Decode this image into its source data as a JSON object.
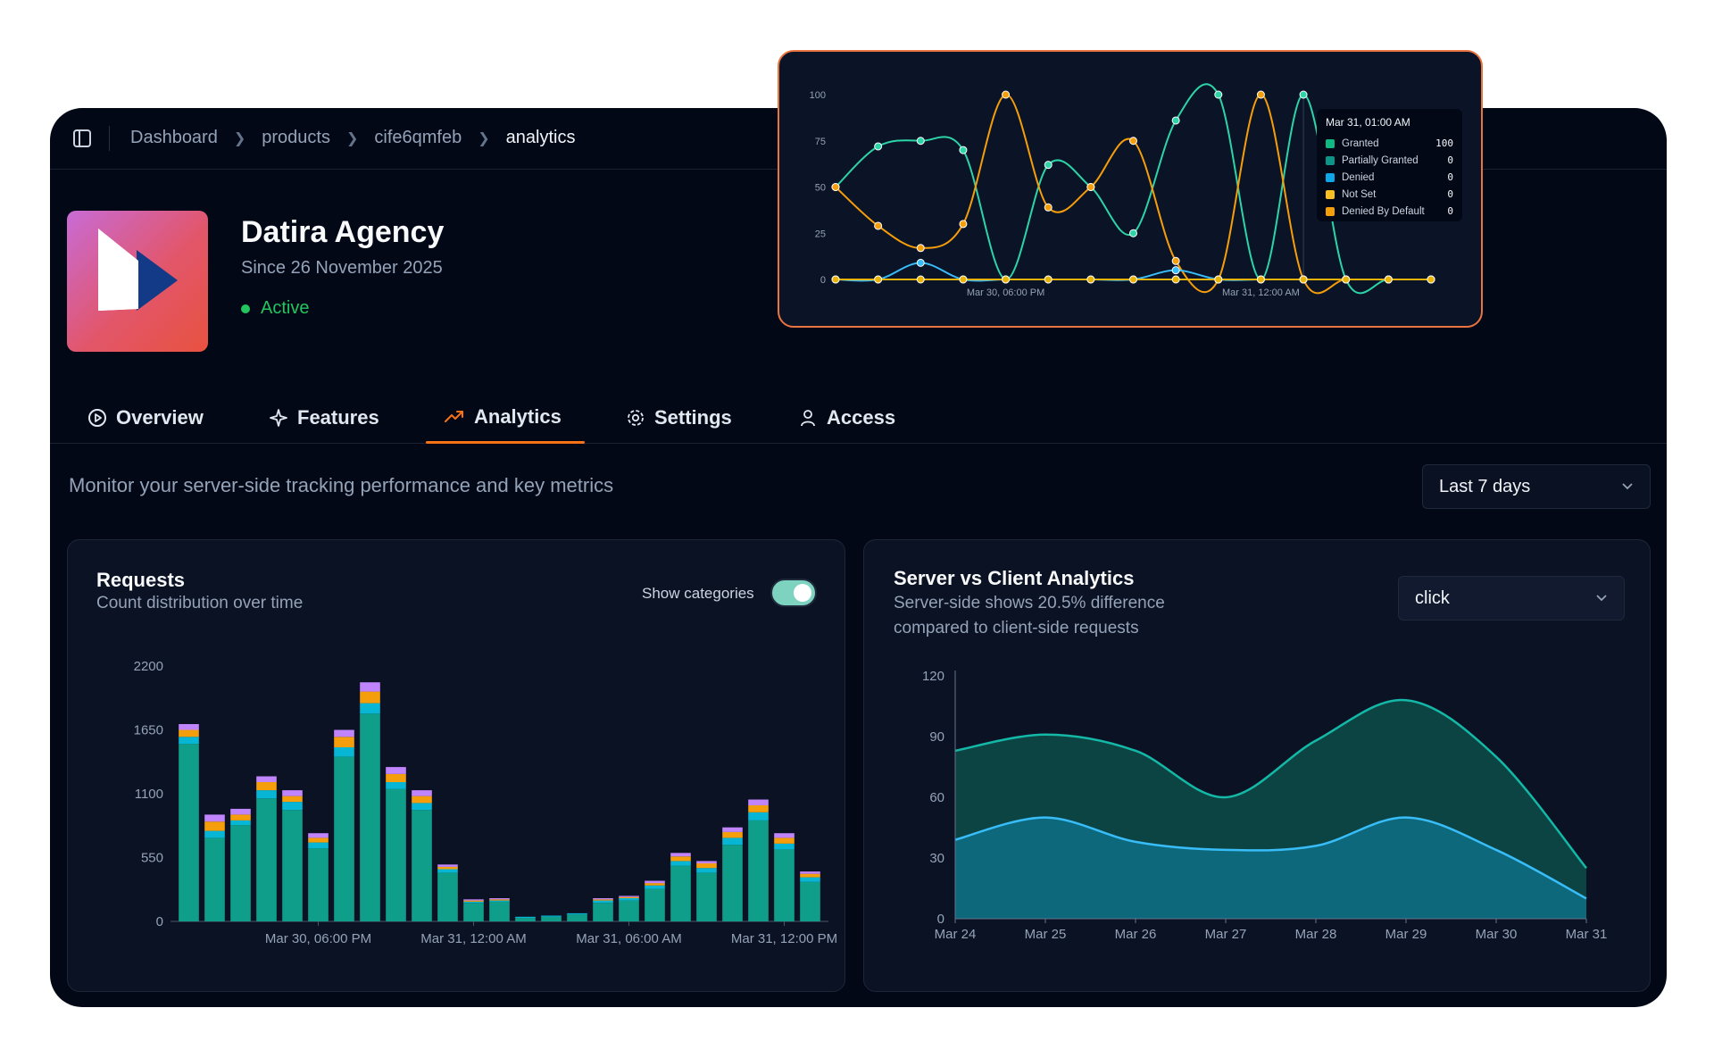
{
  "breadcrumb": [
    "Dashboard",
    "products",
    "cife6qmfeb",
    "analytics"
  ],
  "org": {
    "name": "Datira Agency",
    "since": "Since 26 November 2025",
    "status": "Active"
  },
  "tabs": [
    {
      "label": "Overview",
      "icon": "play-circle-icon"
    },
    {
      "label": "Features",
      "icon": "sparkles-icon"
    },
    {
      "label": "Analytics",
      "icon": "trending-up-icon",
      "active": true
    },
    {
      "label": "Settings",
      "icon": "gear-icon"
    },
    {
      "label": "Access",
      "icon": "user-icon"
    }
  ],
  "page": {
    "subtitle": "Monitor your server-side tracking performance and key metrics",
    "range": "Last 7 days"
  },
  "requests": {
    "title": "Requests",
    "subtitle": "Count distribution over time",
    "toggle_label": "Show categories",
    "toggle_on": true
  },
  "server_client": {
    "title": "Server vs Client Analytics",
    "subtitle_line1": "Server-side shows 20.5% difference",
    "subtitle_line2": "compared to client-side requests",
    "event": "click"
  },
  "tooltip": {
    "title": "Mar 31, 01:00 AM",
    "rows": [
      {
        "label": "Granted",
        "value": "100",
        "color": "#10b981"
      },
      {
        "label": "Partially Granted",
        "value": "0",
        "color": "#0d9488"
      },
      {
        "label": "Denied",
        "value": "0",
        "color": "#0ea5e9"
      },
      {
        "label": "Not Set",
        "value": "0",
        "color": "#fbbf24"
      },
      {
        "label": "Denied By Default",
        "value": "0",
        "color": "#f59e0b"
      }
    ]
  },
  "colors": {
    "accent": "#f97316",
    "active": "#22c55e",
    "teal": "#0d9488",
    "cyan": "#0ea5e9",
    "amber": "#f59e0b",
    "purple": "#c084fc"
  },
  "chart_data": [
    {
      "type": "line",
      "name": "consent",
      "yticks": [
        0,
        25,
        50,
        75,
        100
      ],
      "ylim": [
        0,
        100
      ],
      "xtick_labels": [
        {
          "label": "Mar 30, 06:00 PM",
          "index": 4
        },
        {
          "label": "Mar 31, 12:00 AM",
          "index": 10
        }
      ],
      "series": [
        {
          "name": "Granted",
          "color": "#2dd4a8",
          "values": [
            50,
            72,
            75,
            70,
            0,
            62,
            50,
            25,
            86,
            100,
            0,
            100,
            0,
            0,
            0
          ]
        },
        {
          "name": "Denied By Default",
          "color": "#f59e0b",
          "values": [
            50,
            29,
            17,
            30,
            100,
            39,
            50,
            75,
            10,
            0,
            100,
            0,
            0,
            0,
            0
          ]
        },
        {
          "name": "Denied",
          "color": "#38bdf8",
          "values": [
            0,
            0,
            9,
            0,
            0,
            0,
            0,
            0,
            5,
            0,
            0,
            0,
            0,
            0,
            0
          ]
        },
        {
          "name": "Not Set",
          "color": "#eab308",
          "values": [
            0,
            0,
            0,
            0,
            0,
            0,
            0,
            0,
            0,
            0,
            0,
            0,
            0,
            0,
            0
          ]
        }
      ]
    },
    {
      "type": "bar",
      "name": "requests",
      "stacked": true,
      "ylim": [
        0,
        2200
      ],
      "yticks": [
        0,
        550,
        1100,
        1650,
        2200
      ],
      "xtick_labels": [
        {
          "label": "Mar 30, 06:00 PM",
          "index": 5
        },
        {
          "label": "Mar 31, 12:00 AM",
          "index": 11
        },
        {
          "label": "Mar 31, 06:00 AM",
          "index": 17
        },
        {
          "label": "Mar 31, 12:00 PM",
          "index": 23
        }
      ],
      "series": [
        {
          "name": "teal",
          "color": "#0f9e8a",
          "values": [
            1530,
            720,
            830,
            1060,
            960,
            630,
            1420,
            1790,
            1140,
            960,
            420,
            160,
            170,
            30,
            40,
            60,
            160,
            180,
            280,
            480,
            420,
            660,
            870,
            620,
            340
          ]
        },
        {
          "name": "cyan",
          "color": "#06b6d4",
          "values": [
            60,
            60,
            40,
            70,
            70,
            50,
            80,
            90,
            60,
            60,
            30,
            10,
            10,
            10,
            10,
            10,
            20,
            20,
            30,
            40,
            40,
            60,
            70,
            50,
            40
          ]
        },
        {
          "name": "orange",
          "color": "#f59e0b",
          "values": [
            60,
            80,
            50,
            70,
            50,
            40,
            90,
            100,
            70,
            60,
            20,
            10,
            10,
            0,
            0,
            0,
            10,
            10,
            20,
            40,
            40,
            50,
            60,
            50,
            30
          ]
        },
        {
          "name": "purple",
          "color": "#c084fc",
          "values": [
            50,
            60,
            50,
            50,
            50,
            40,
            60,
            80,
            60,
            50,
            20,
            10,
            10,
            0,
            0,
            0,
            10,
            10,
            20,
            30,
            20,
            40,
            50,
            40,
            20
          ]
        }
      ]
    },
    {
      "type": "area",
      "name": "server-vs-client",
      "ylim": [
        0,
        120
      ],
      "yticks": [
        0,
        30,
        60,
        90,
        120
      ],
      "categories": [
        "Mar 24",
        "Mar 25",
        "Mar 26",
        "Mar 27",
        "Mar 28",
        "Mar 29",
        "Mar 30",
        "Mar 31"
      ],
      "series": [
        {
          "name": "server",
          "color": "#14b8a6",
          "values": [
            83,
            91,
            83,
            60,
            88,
            108,
            80,
            25
          ]
        },
        {
          "name": "client",
          "color": "#38bdf8",
          "values": [
            39,
            50,
            38,
            34,
            36,
            50,
            34,
            10
          ]
        }
      ]
    }
  ]
}
